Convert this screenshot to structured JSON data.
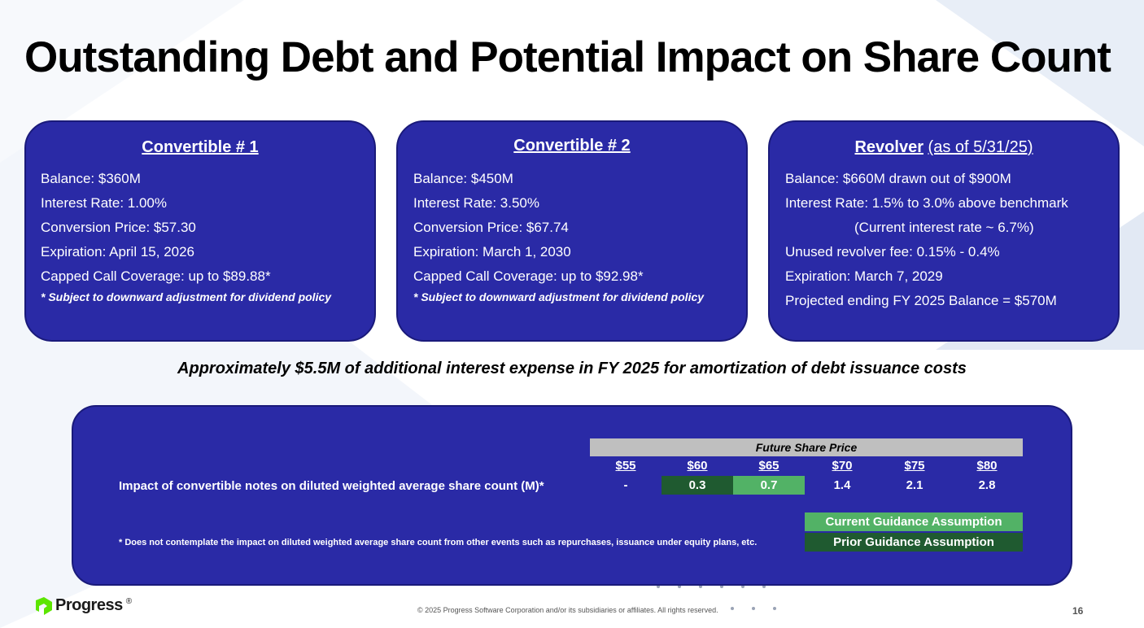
{
  "title": "Outstanding Debt and Potential Impact on Share Count",
  "cards": [
    {
      "title": "Convertible # 1",
      "lines": [
        "Balance: $360M",
        "Interest Rate: 1.00%",
        "Conversion Price: $57.30",
        "Expiration: April 15, 2026",
        "Capped Call Coverage: up to $89.88*"
      ],
      "note": "* Subject to downward adjustment for dividend policy"
    },
    {
      "title": "Convertible # 2",
      "lines": [
        "Balance: $450M",
        "Interest Rate: 3.50%",
        "Conversion Price: $67.74",
        "Expiration: March 1, 2030",
        "Capped Call Coverage: up to $92.98*"
      ],
      "note": "* Subject to downward adjustment for dividend policy"
    },
    {
      "title": "Revolver",
      "as_of": "(as of 5/31/25)",
      "lines": [
        "Balance: $660M drawn out of $900M",
        "Interest Rate: 1.5% to 3.0% above benchmark",
        "(Current interest rate ~ 6.7%)",
        "Unused revolver fee: 0.15% - 0.4%",
        "Expiration: March 7, 2029",
        "Projected ending FY 2025 Balance = $570M"
      ]
    }
  ],
  "subnote": "Approximately $5.5M of additional interest expense in FY 2025 for amortization of debt issuance costs",
  "table": {
    "header": "Future Share Price",
    "prices": [
      "$55",
      "$60",
      "$65",
      "$70",
      "$75",
      "$80"
    ],
    "row_label": "Impact of convertible notes on diluted weighted average share count (M)*",
    "values": [
      "-",
      "0.3",
      "0.7",
      "1.4",
      "2.1",
      "2.8"
    ],
    "legend_current": "Current Guidance Assumption",
    "legend_prior": "Prior Guidance Assumption",
    "footnote": "* Does not contemplate the impact on diluted weighted average share count from other events such as repurchases, issuance under equity plans, etc."
  },
  "footer": {
    "logo": "Progress",
    "logo_mark": "®",
    "copyright": "© 2025 Progress Software Corporation and/or its subsidiaries or affiliates. All rights reserved.",
    "page": "16"
  },
  "colors": {
    "card_bg": "#2a2aa6",
    "prior": "#1f5a30",
    "current": "#52b266",
    "logo_green": "#5ce500"
  }
}
